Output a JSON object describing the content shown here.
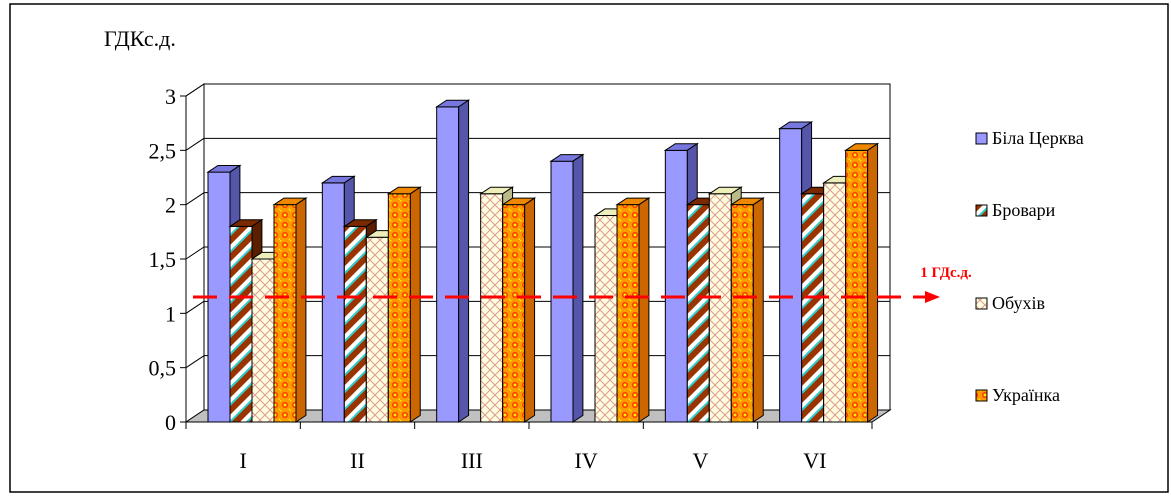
{
  "chart_data": {
    "type": "bar",
    "ylabel": "ГДКс.д.",
    "categories": [
      "I",
      "II",
      "III",
      "IV",
      "V",
      "VI"
    ],
    "ylim": [
      0,
      3
    ],
    "yticks": [
      0,
      0.5,
      1,
      1.5,
      2,
      2.5,
      3
    ],
    "ytick_labels": [
      "0",
      "0,5",
      "1",
      "1,5",
      "2",
      "2,5",
      "3"
    ],
    "grid": true,
    "legend_position": "right",
    "series": [
      {
        "name": "Біла Церква",
        "values": [
          2.3,
          2.2,
          2.9,
          2.4,
          2.5,
          2.7
        ],
        "color": "#9999ff"
      },
      {
        "name": "Бровари",
        "values": [
          1.8,
          1.8,
          null,
          null,
          2.0,
          2.1
        ],
        "color": "#993300"
      },
      {
        "name": "Обухів",
        "values": [
          1.5,
          1.7,
          2.1,
          1.9,
          2.1,
          2.2
        ],
        "color": "#ffffcc"
      },
      {
        "name": "Українка",
        "values": [
          2.0,
          2.1,
          2.0,
          2.0,
          2.0,
          2.5
        ],
        "color": "#ff9900"
      }
    ],
    "reference_line": {
      "value": 1.15,
      "label": "1 ГДс.д.",
      "color": "#ff0000"
    }
  }
}
